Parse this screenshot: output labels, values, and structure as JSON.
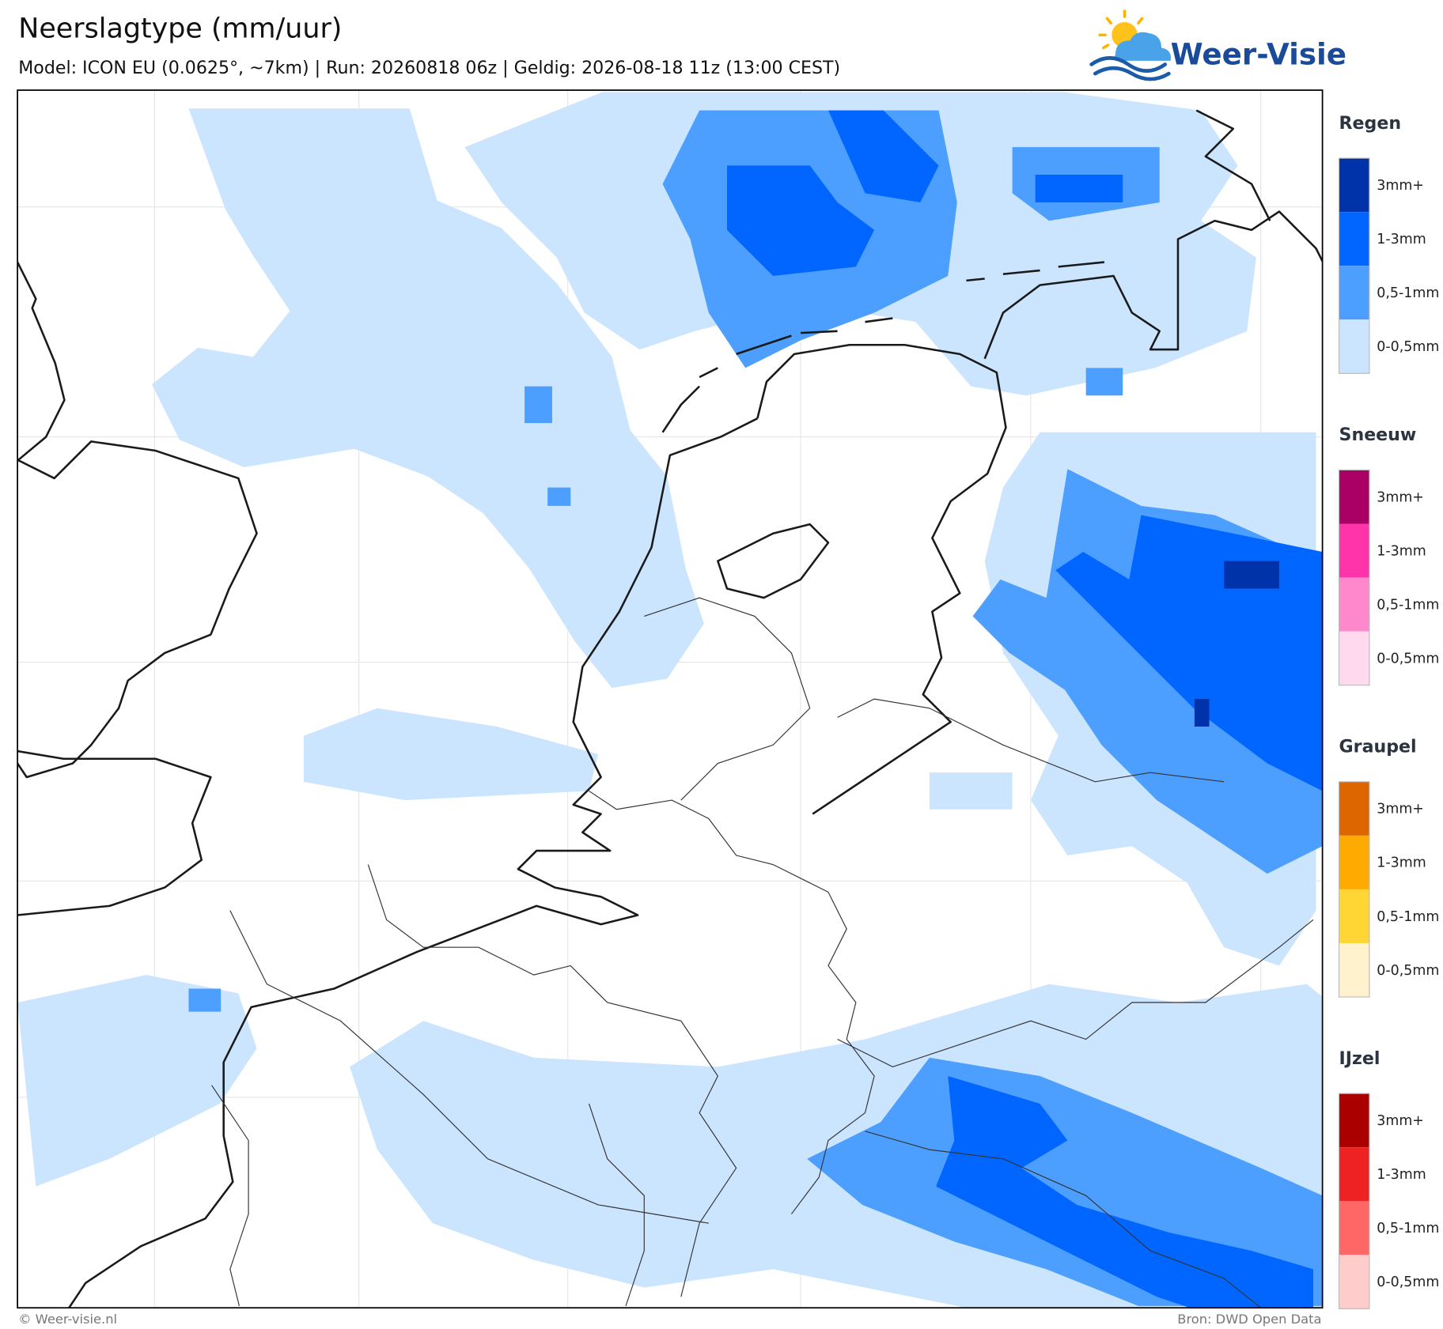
{
  "header": {
    "title": "Neerslagtype (mm/uur)",
    "subtitle": "Model: ICON EU (0.0625°, ~7km)  |  Run: 20260818 06z  |  Geldig: 2026-08-18 11z (13:00 CEST)"
  },
  "logo": {
    "text": "Weer-Visie"
  },
  "legend": [
    {
      "title": "Regen",
      "items": [
        {
          "label": "3mm+",
          "color": "#0033aa"
        },
        {
          "label": "1-3mm",
          "color": "#0066ff"
        },
        {
          "label": "0,5-1mm",
          "color": "#4d9fff"
        },
        {
          "label": "0-0,5mm",
          "color": "#cce5ff"
        }
      ]
    },
    {
      "title": "Sneeuw",
      "items": [
        {
          "label": "3mm+",
          "color": "#aa0066"
        },
        {
          "label": "1-3mm",
          "color": "#ff33aa"
        },
        {
          "label": "0,5-1mm",
          "color": "#ff88cc"
        },
        {
          "label": "0-0,5mm",
          "color": "#ffd9ee"
        }
      ]
    },
    {
      "title": "Graupel",
      "items": [
        {
          "label": "3mm+",
          "color": "#dd6600"
        },
        {
          "label": "1-3mm",
          "color": "#ffaa00"
        },
        {
          "label": "0,5-1mm",
          "color": "#ffd633"
        },
        {
          "label": "0-0,5mm",
          "color": "#fff2cc"
        }
      ]
    },
    {
      "title": "IJzel",
      "items": [
        {
          "label": "3mm+",
          "color": "#aa0000"
        },
        {
          "label": "1-3mm",
          "color": "#ee2222"
        },
        {
          "label": "0,5-1mm",
          "color": "#ff6666"
        },
        {
          "label": "0-0,5mm",
          "color": "#ffcccc"
        }
      ]
    }
  ],
  "footer": {
    "copyright": "© Weer-visie.nl",
    "source": "Bron: DWD Open Data"
  }
}
